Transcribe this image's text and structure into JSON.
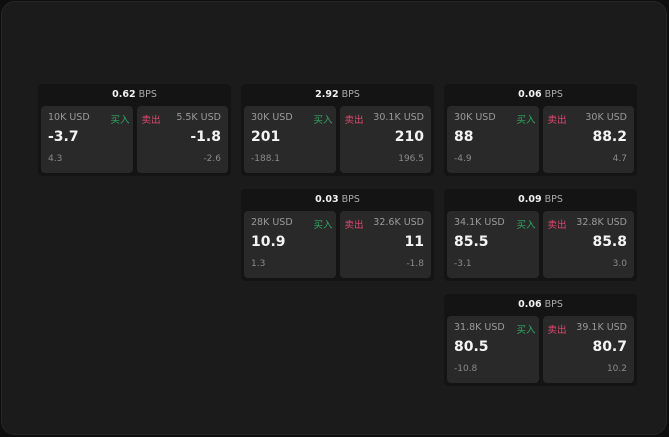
{
  "unit": "BPS",
  "buy_label": "买入",
  "sell_label": "卖出",
  "colors": {
    "buy": "#2fa865",
    "sell": "#e04870"
  },
  "cards": [
    {
      "spread": "0.62",
      "bid_size": "10K USD",
      "bid": "-3.7",
      "bid_change": "4.3",
      "ask_size": "5.5K USD",
      "ask": "-1.8",
      "ask_change": "-2.6"
    },
    {
      "spread": "2.92",
      "bid_size": "30K USD",
      "bid": "201",
      "bid_change": "-188.1",
      "ask_size": "30.1K USD",
      "ask": "210",
      "ask_change": "196.5"
    },
    {
      "spread": "0.06",
      "bid_size": "30K USD",
      "bid": "88",
      "bid_change": "-4.9",
      "ask_size": "30K USD",
      "ask": "88.2",
      "ask_change": "4.7"
    },
    {
      "spread": "0.03",
      "bid_size": "28K USD",
      "bid": "10.9",
      "bid_change": "1.3",
      "ask_size": "32.6K USD",
      "ask": "11",
      "ask_change": "-1.8"
    },
    {
      "spread": "0.09",
      "bid_size": "34.1K USD",
      "bid": "85.5",
      "bid_change": "-3.1",
      "ask_size": "32.8K USD",
      "ask": "85.8",
      "ask_change": "3.0"
    },
    {
      "spread": "0.06",
      "bid_size": "31.8K USD",
      "bid": "80.5",
      "bid_change": "-10.8",
      "ask_size": "39.1K USD",
      "ask": "80.7",
      "ask_change": "10.2"
    }
  ]
}
